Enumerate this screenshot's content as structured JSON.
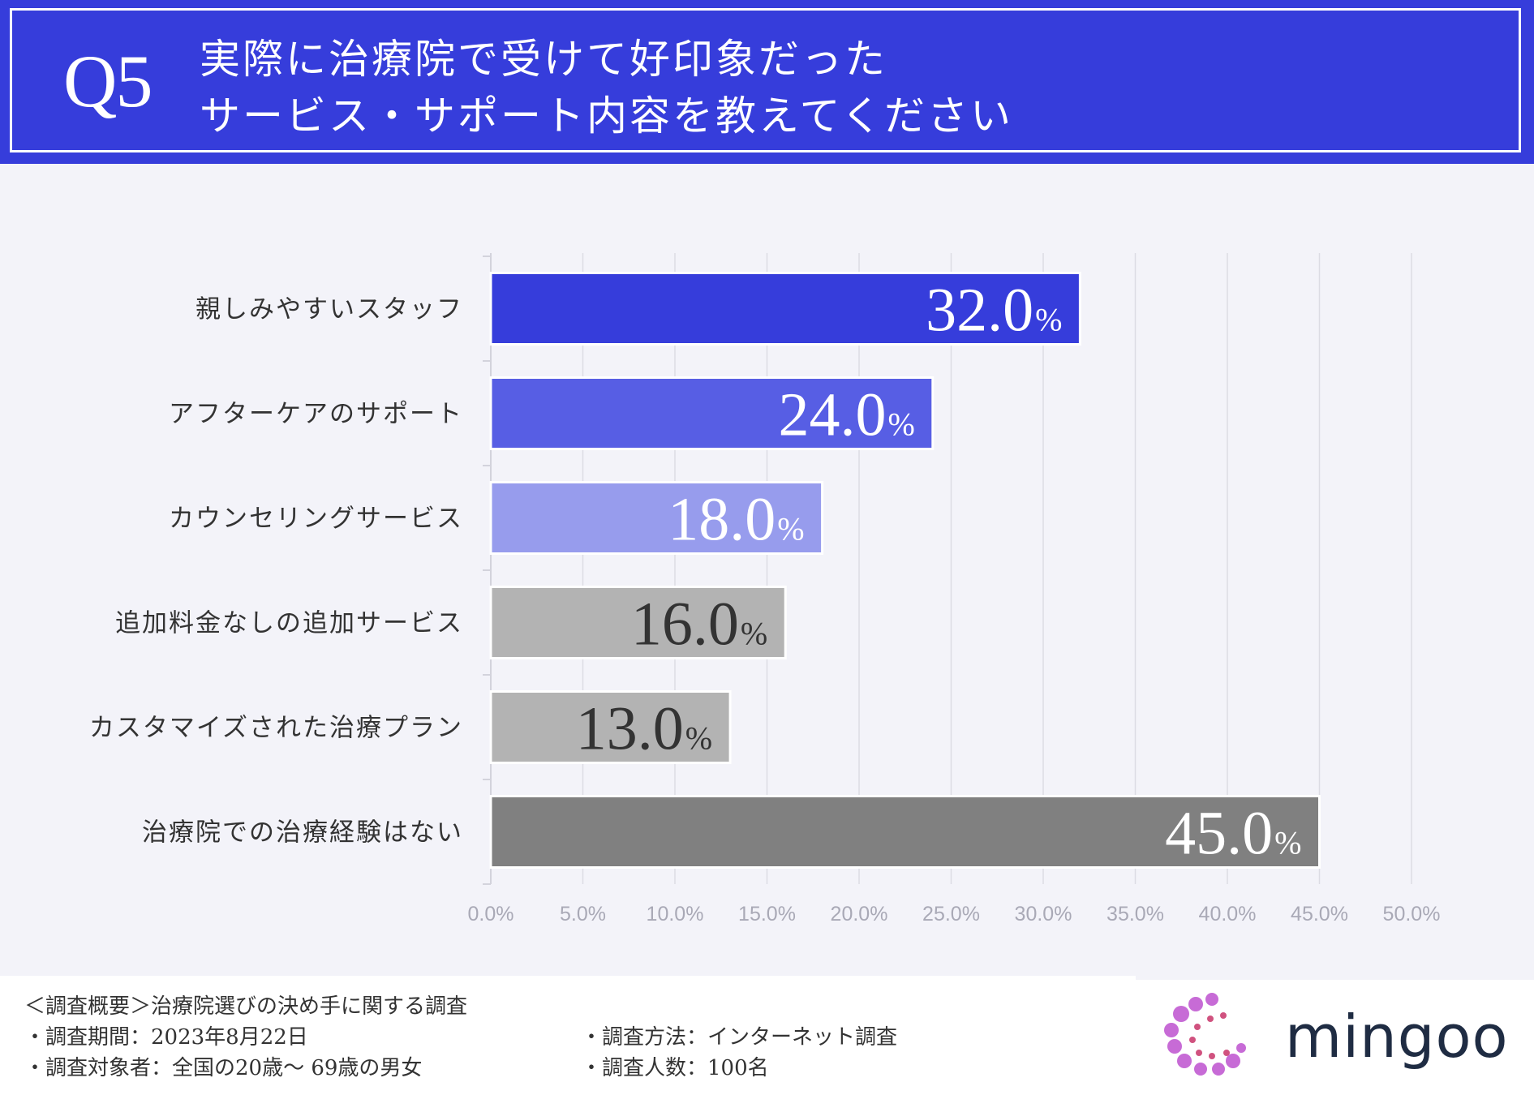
{
  "header": {
    "question_label": "Q5",
    "title_line1": "実際に治療院で受けて好印象だった",
    "title_line2": "サービス・サポート内容を教えてください"
  },
  "chart_data": {
    "type": "bar",
    "orientation": "horizontal",
    "categories": [
      "親しみやすいスタッフ",
      "アフターケアのサポート",
      "カウンセリングサービス",
      "追加料金なしの追加サービス",
      "カスタマイズされた治療プラン",
      "治療院での治療経験はない"
    ],
    "values": [
      32.0,
      24.0,
      18.0,
      16.0,
      13.0,
      45.0
    ],
    "value_labels": [
      "32.0",
      "24.0",
      "18.0",
      "16.0",
      "13.0",
      "45.0"
    ],
    "value_unit": "%",
    "bar_colors": [
      "#363ddb",
      "#575ee4",
      "#979ced",
      "#b3b3b3",
      "#b3b3b3",
      "#808080"
    ],
    "label_colors": [
      "#ffffff",
      "#ffffff",
      "#ffffff",
      "#333333",
      "#333333",
      "#ffffff"
    ],
    "xlim": [
      0,
      50
    ],
    "x_ticks": [
      "0.0%",
      "5.0%",
      "10.0%",
      "15.0%",
      "20.0%",
      "25.0%",
      "30.0%",
      "35.0%",
      "40.0%",
      "45.0%",
      "50.0%"
    ],
    "grid": true
  },
  "footer": {
    "summary": "＜調査概要＞治療院選びの決め手に関する調査",
    "period": "・調査期間：2023年8月22日",
    "target": "・調査対象者：全国の20歳～ 69歳の男女",
    "method": "・調査方法：インターネット調査",
    "count": "・調査人数：100名"
  },
  "brand": {
    "name": "mingoo",
    "colors": [
      "#c76bd6",
      "#d0527f"
    ]
  }
}
